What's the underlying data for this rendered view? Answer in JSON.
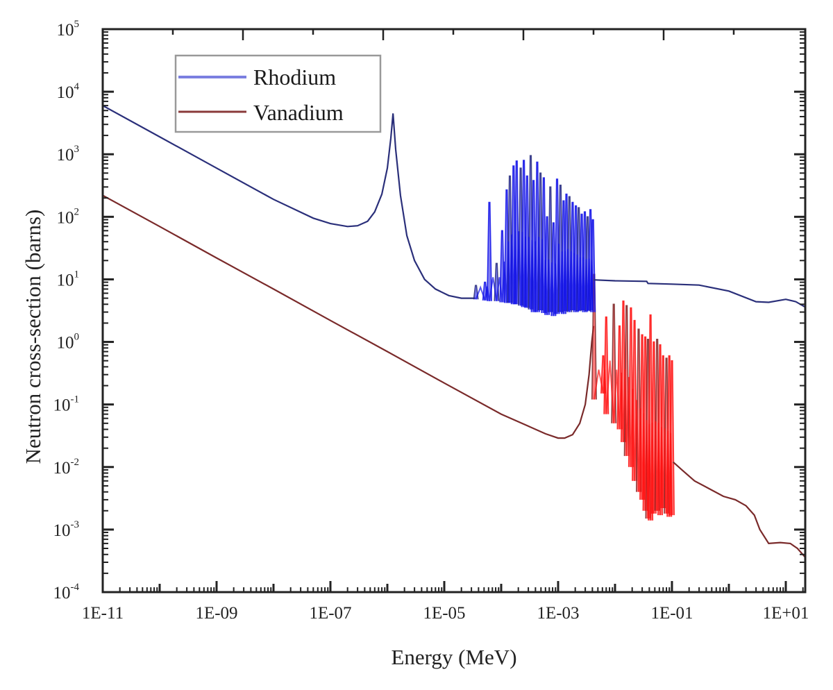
{
  "chart_data": {
    "type": "line",
    "title": "",
    "xlabel": "Energy (MeV)",
    "ylabel": "Neutron cross-section (barns)",
    "xscale": "log",
    "yscale": "log",
    "xlim": [
      1e-11,
      22
    ],
    "ylim": [
      0.0001,
      100000.0
    ],
    "grid": false,
    "legend_position": "top-left",
    "x_tick_labels": [
      "1E-11",
      "1E-09",
      "1E-07",
      "1E-05",
      "1E-03",
      "1E-01",
      "1E+01"
    ],
    "x_tick_values": [
      1e-11,
      1e-09,
      1e-07,
      1e-05,
      0.001,
      0.1,
      10
    ],
    "y_tick_labels": [
      {
        "base": "10",
        "exp": "5",
        "value": 100000.0
      },
      {
        "base": "10",
        "exp": "4",
        "value": 10000.0
      },
      {
        "base": "10",
        "exp": "3",
        "value": 1000.0
      },
      {
        "base": "10",
        "exp": "2",
        "value": 100.0
      },
      {
        "base": "10",
        "exp": "1",
        "value": 10.0
      },
      {
        "base": "10",
        "exp": "0",
        "value": 1.0
      },
      {
        "base": "10",
        "exp": "-1",
        "value": 0.1
      },
      {
        "base": "10",
        "exp": "-2",
        "value": 0.01
      },
      {
        "base": "10",
        "exp": "-3",
        "value": 0.001
      },
      {
        "base": "10",
        "exp": "-4",
        "value": 0.0001
      }
    ],
    "series": [
      {
        "name": "Rhodium",
        "line_color": "#2a2f7a",
        "resonance_color": "#1010e8",
        "legend_color": "#7b7fe0",
        "smooth": {
          "x": [
            1e-11,
            1e-10,
            1e-09,
            1e-08,
            5e-08,
            1e-07,
            2e-07,
            3e-07,
            4.5e-07,
            6e-07,
            8e-07,
            1e-06,
            1.15e-06,
            1.26e-06,
            1.4e-06,
            1.7e-06,
            2.2e-06,
            3e-06,
            4.5e-06,
            7e-06,
            1.2e-05,
            2e-05,
            3.5e-05
          ],
          "y": [
            6000,
            1900,
            600,
            190,
            95,
            78,
            70,
            72,
            85,
            120,
            230,
            600,
            1800,
            4500,
            1200,
            220,
            50,
            20,
            10,
            7,
            5.5,
            5,
            5
          ]
        },
        "resonances": {
          "x_range": [
            3.5e-05,
            0.0042
          ],
          "base": 4.8,
          "peaks": [
            {
              "x": 3.6e-05,
              "peak": 8,
              "dip": 4.8
            },
            {
              "x": 5.2e-05,
              "peak": 9,
              "dip": 4.6
            },
            {
              "x": 6.2e-05,
              "peak": 170,
              "dip": 4.5
            },
            {
              "x": 8.3e-05,
              "peak": 18,
              "dip": 4.5
            },
            {
              "x": 0.000104,
              "peak": 60,
              "dip": 4.3
            },
            {
              "x": 0.000125,
              "peak": 270,
              "dip": 4.2
            },
            {
              "x": 0.000142,
              "peak": 450,
              "dip": 4.2
            },
            {
              "x": 0.000165,
              "peak": 650,
              "dip": 4.0
            },
            {
              "x": 0.000187,
              "peak": 780,
              "dip": 4.0
            },
            {
              "x": 0.00022,
              "peak": 600,
              "dip": 3.8
            },
            {
              "x": 0.00025,
              "peak": 800,
              "dip": 3.6
            },
            {
              "x": 0.000285,
              "peak": 450,
              "dip": 3.5
            },
            {
              "x": 0.00033,
              "peak": 950,
              "dip": 3.3
            },
            {
              "x": 0.00037,
              "peak": 380,
              "dip": 3.0
            },
            {
              "x": 0.00043,
              "peak": 750,
              "dip": 3.0
            },
            {
              "x": 0.00049,
              "peak": 500,
              "dip": 3.2
            },
            {
              "x": 0.00056,
              "peak": 420,
              "dip": 2.9
            },
            {
              "x": 0.00064,
              "peak": 100,
              "dip": 2.7
            },
            {
              "x": 0.00073,
              "peak": 300,
              "dip": 3.0
            },
            {
              "x": 0.00083,
              "peak": 80,
              "dip": 2.6
            },
            {
              "x": 0.00096,
              "peak": 400,
              "dip": 2.8
            },
            {
              "x": 0.0011,
              "peak": 320,
              "dip": 3.0
            },
            {
              "x": 0.00125,
              "peak": 180,
              "dip": 2.8
            },
            {
              "x": 0.0014,
              "peak": 230,
              "dip": 3.1
            },
            {
              "x": 0.00158,
              "peak": 210,
              "dip": 3.0
            },
            {
              "x": 0.0018,
              "peak": 170,
              "dip": 3.2
            },
            {
              "x": 0.00205,
              "peak": 150,
              "dip": 3.0
            },
            {
              "x": 0.0023,
              "peak": 140,
              "dip": 3.1
            },
            {
              "x": 0.0026,
              "peak": 110,
              "dip": 3.2
            },
            {
              "x": 0.00295,
              "peak": 120,
              "dip": 3.0
            },
            {
              "x": 0.0033,
              "peak": 100,
              "dip": 3.1
            },
            {
              "x": 0.0037,
              "peak": 130,
              "dip": 3.2
            },
            {
              "x": 0.0041,
              "peak": 90,
              "dip": 3.0
            }
          ]
        },
        "tail": {
          "x": [
            0.0042,
            0.0043,
            0.01,
            0.036,
            0.038,
            0.1,
            0.3,
            1,
            3,
            5,
            10,
            15,
            22
          ],
          "y": [
            9.8,
            9.8,
            9.5,
            9.3,
            8.6,
            8.4,
            8.1,
            6.5,
            4.4,
            4.3,
            4.8,
            4.4,
            3.6
          ]
        }
      },
      {
        "name": "Vanadium",
        "line_color": "#7a2a2a",
        "resonance_color": "#ff1010",
        "legend_color": "#8a3a3a",
        "smooth": {
          "x": [
            1e-11,
            1e-10,
            1e-09,
            1e-08,
            1e-07,
            1e-06,
            1e-05,
            0.0001,
            0.0003,
            0.0006,
            0.001,
            0.0013,
            0.0018,
            0.0024,
            0.003,
            0.0035,
            0.0039,
            0.0042
          ],
          "y": [
            220,
            70,
            22,
            7,
            2.2,
            0.7,
            0.22,
            0.07,
            0.045,
            0.034,
            0.029,
            0.029,
            0.033,
            0.05,
            0.1,
            0.3,
            1.0,
            1.8
          ]
        },
        "resonances": {
          "x_range": [
            0.0042,
            0.105
          ],
          "peaks": [
            {
              "x": 0.0043,
              "peak": 12,
              "dip": 0.12
            },
            {
              "x": 0.0062,
              "peak": 0.6,
              "dip": 0.15
            },
            {
              "x": 0.007,
              "peak": 2.5,
              "dip": 0.07
            },
            {
              "x": 0.0095,
              "peak": 4.0,
              "dip": 0.05
            },
            {
              "x": 0.012,
              "peak": 1.8,
              "dip": 0.04
            },
            {
              "x": 0.014,
              "peak": 4.5,
              "dip": 0.025
            },
            {
              "x": 0.016,
              "peak": 3.8,
              "dip": 0.015
            },
            {
              "x": 0.019,
              "peak": 3.5,
              "dip": 0.01
            },
            {
              "x": 0.022,
              "peak": 2.2,
              "dip": 0.006
            },
            {
              "x": 0.026,
              "peak": 1.6,
              "dip": 0.004
            },
            {
              "x": 0.03,
              "peak": 1.3,
              "dip": 0.003
            },
            {
              "x": 0.034,
              "peak": 1.2,
              "dip": 0.002
            },
            {
              "x": 0.038,
              "peak": 1.1,
              "dip": 0.0015
            },
            {
              "x": 0.042,
              "peak": 2.7,
              "dip": 0.0014
            },
            {
              "x": 0.048,
              "peak": 1.0,
              "dip": 0.0018
            },
            {
              "x": 0.055,
              "peak": 1.1,
              "dip": 0.002
            },
            {
              "x": 0.062,
              "peak": 0.9,
              "dip": 0.0017
            },
            {
              "x": 0.07,
              "peak": 0.6,
              "dip": 0.0022
            },
            {
              "x": 0.08,
              "peak": 0.55,
              "dip": 0.0018
            },
            {
              "x": 0.09,
              "peak": 0.6,
              "dip": 0.0016
            },
            {
              "x": 0.1,
              "peak": 0.5,
              "dip": 0.0017
            }
          ]
        },
        "tail": {
          "x": [
            0.105,
            0.15,
            0.25,
            0.45,
            0.8,
            1.3,
            2.0,
            2.8,
            3.5,
            5,
            8,
            12,
            16,
            22
          ],
          "y": [
            0.012,
            0.009,
            0.006,
            0.0045,
            0.0034,
            0.003,
            0.0024,
            0.0017,
            0.001,
            0.0006,
            0.00062,
            0.0006,
            0.0005,
            0.00036
          ]
        }
      }
    ]
  }
}
